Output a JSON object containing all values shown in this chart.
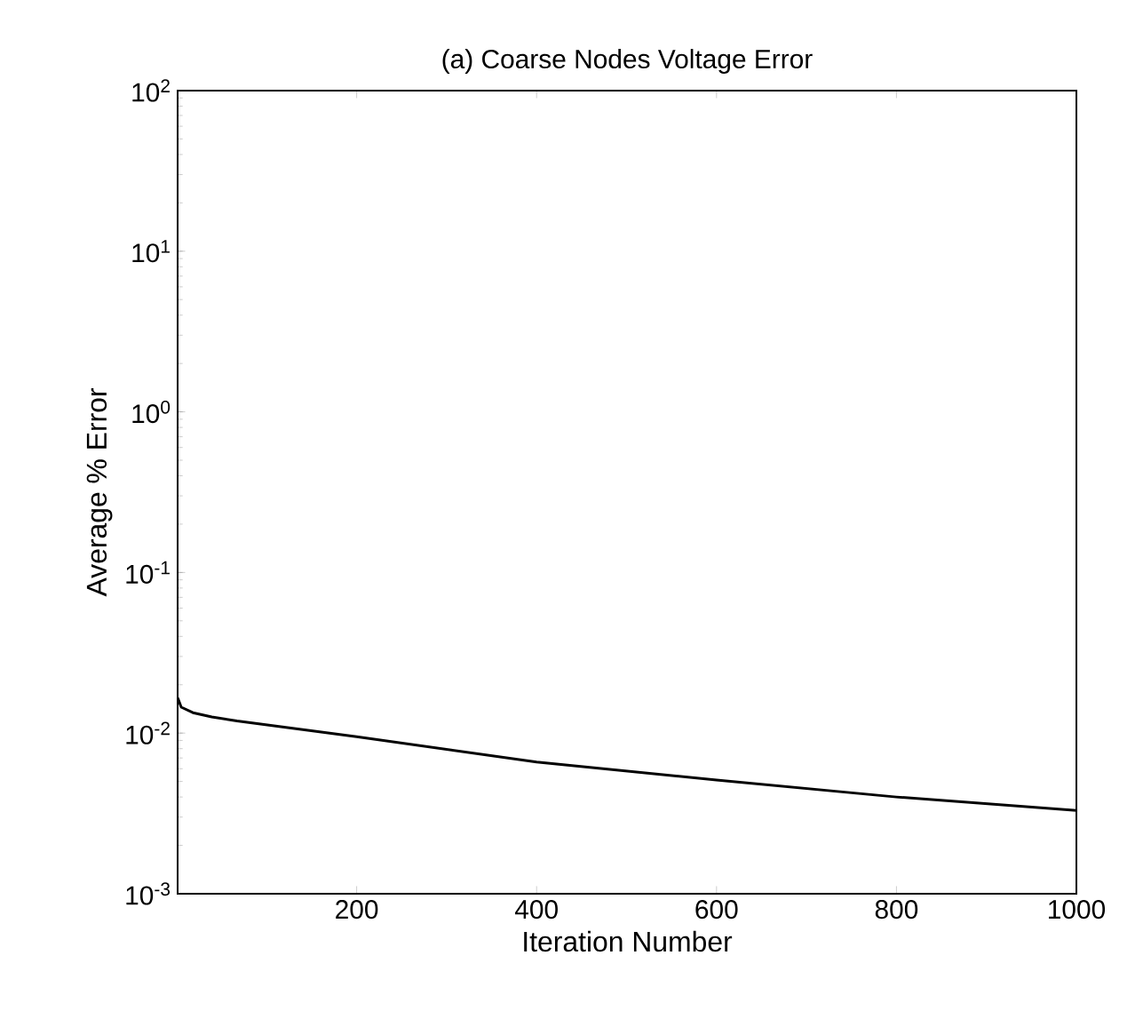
{
  "chart_data": {
    "type": "line",
    "title": "(a) Coarse Nodes Voltage Error",
    "xlabel": "Iteration Number",
    "ylabel": "Average % Error",
    "series": [
      {
        "color": "#000000",
        "x": [
          1,
          5,
          18,
          39,
          67,
          200,
          400,
          600,
          800,
          1000
        ],
        "values": [
          0.0166,
          0.0145,
          0.0134,
          0.0126,
          0.0119,
          0.0095,
          0.0066,
          0.0051,
          0.004,
          0.0033
        ]
      }
    ],
    "log": "y",
    "xlim": [
      1,
      1000
    ],
    "ylim": [
      0.001,
      100
    ],
    "xticks": [
      200,
      400,
      600,
      800,
      1000
    ],
    "yticks": [
      {
        "value": 0.001,
        "label": "10$^{-3}$"
      },
      {
        "value": 0.01,
        "label": "10$^{-2}$"
      },
      {
        "value": 0.1,
        "label": "10$^{-1}$"
      },
      {
        "value": 1,
        "label": "10$^{0}$"
      },
      {
        "value": 10,
        "label": "10$^{1}$"
      },
      {
        "value": 100,
        "label": "10$^{2}$"
      }
    ],
    "grid": false,
    "marker": "none",
    "line_style": "solid"
  }
}
